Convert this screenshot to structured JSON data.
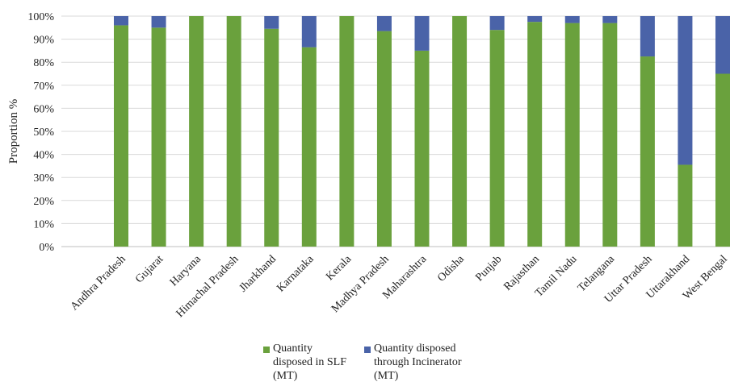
{
  "chart_data": {
    "type": "bar",
    "stacked": true,
    "ylabel": "Proportion %",
    "ylim": [
      0,
      100
    ],
    "yticks": [
      "0%",
      "10%",
      "20%",
      "30%",
      "40%",
      "50%",
      "60%",
      "70%",
      "80%",
      "90%",
      "100%"
    ],
    "grid": true,
    "legend_position": "bottom",
    "categories": [
      "Andhra Pradesh",
      "Gujarat",
      "Haryana",
      "Himachal Pradesh",
      "Jharkhand",
      "Karnataka",
      "Kerala",
      "Madhya Pradesh",
      "Maharashtra",
      "Odisha",
      "Punjab",
      "Rajasthan",
      "Tamil Nadu",
      "Telangana",
      "Uttar Pradesh",
      "Uttarakhand",
      "West Bengal"
    ],
    "series": [
      {
        "name": "Quantity\ndisposed in SLF\n(MT)",
        "color": "#6aa13d",
        "values": [
          96,
          95,
          100,
          100,
          94.5,
          86.5,
          100,
          93.5,
          85,
          100,
          94,
          97.5,
          97,
          97,
          82.5,
          35.5,
          75
        ]
      },
      {
        "name": "Quantity disposed\nthrough Incinerator\n(MT)",
        "color": "#4a63a8",
        "values": [
          4,
          5,
          0,
          0,
          5.5,
          13.5,
          0,
          6.5,
          15,
          0,
          6,
          2.5,
          3,
          3,
          17.5,
          64.5,
          25
        ]
      }
    ]
  }
}
